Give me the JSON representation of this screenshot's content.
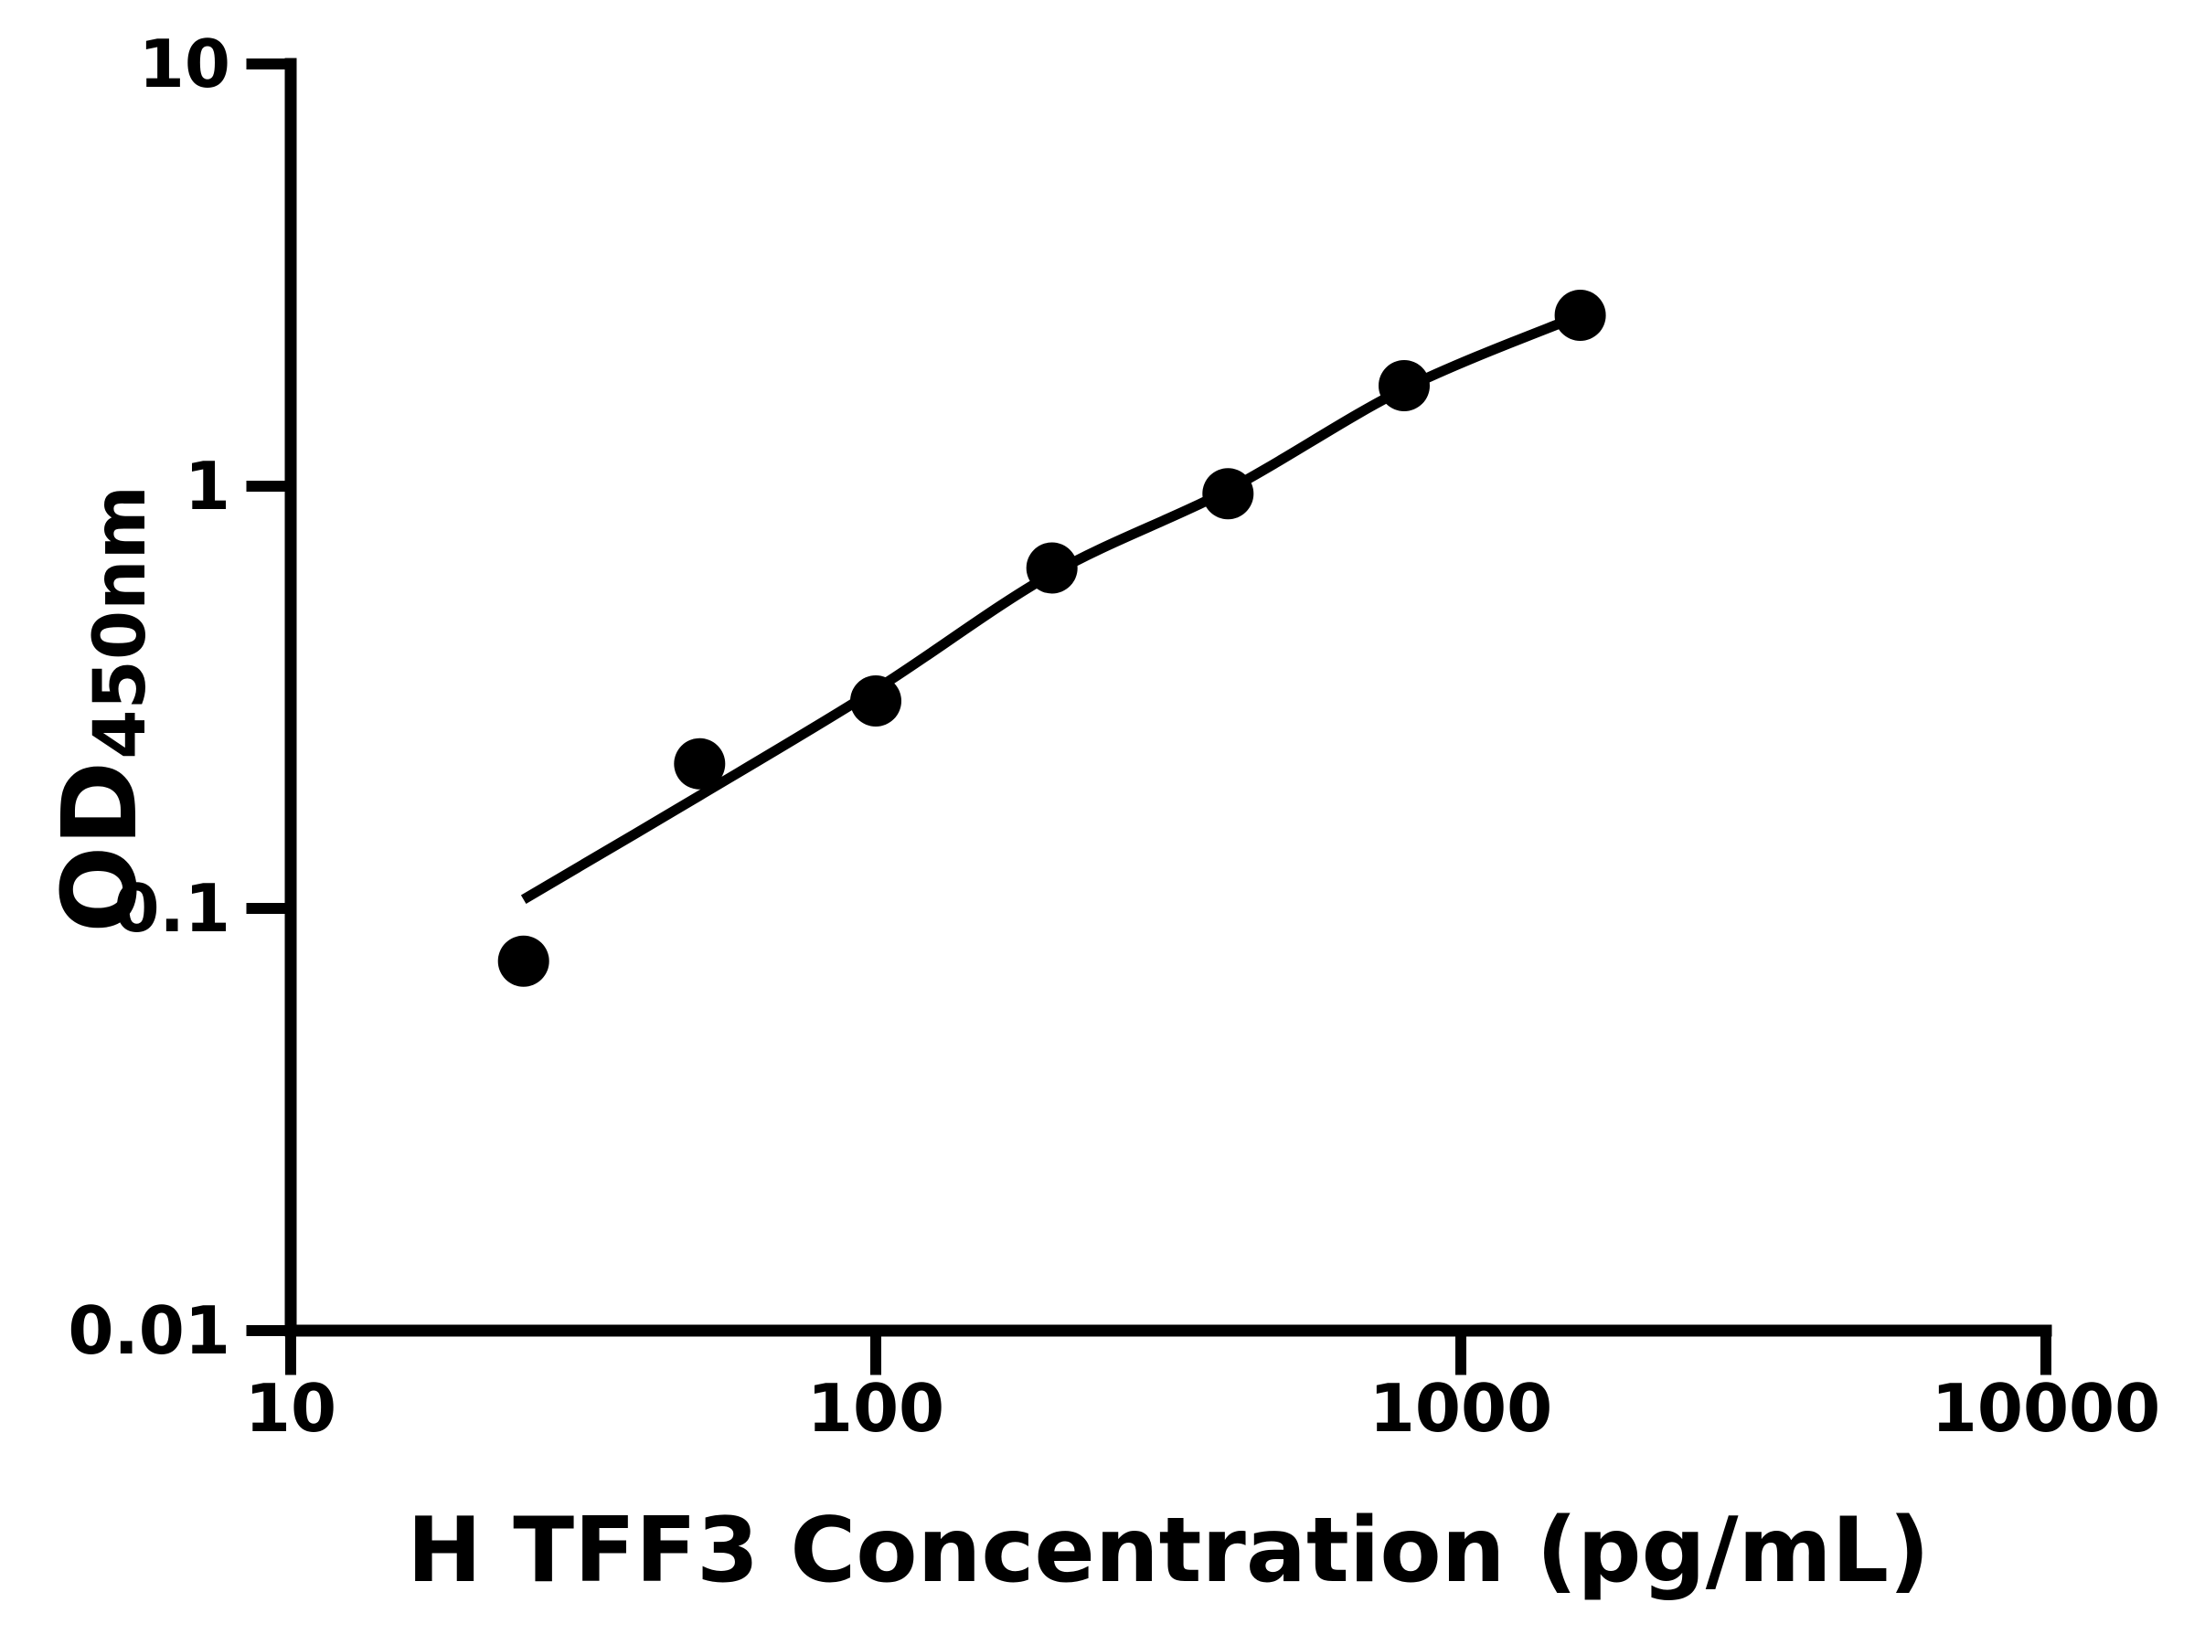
{
  "chart_data": {
    "type": "scatter",
    "title": "",
    "xlabel": "H TFF3 Concentration (pg/mL)",
    "ylabel_main": "OD",
    "ylabel_subscript": "450nm",
    "x_scale": "log",
    "y_scale": "log",
    "xlim": [
      10,
      10000
    ],
    "ylim": [
      0.01,
      10
    ],
    "x_ticks": {
      "values": [
        10,
        100,
        1000,
        10000
      ],
      "labels": [
        "10",
        "100",
        "1000",
        "10000"
      ]
    },
    "y_ticks": {
      "values": [
        10,
        1,
        0.1,
        0.01
      ],
      "labels": [
        "10",
        "1",
        "0.1",
        "0.01"
      ]
    },
    "grid": false,
    "legend": false,
    "series": [
      {
        "name": "standard-points",
        "marker": "filled-circle",
        "color": "#000000",
        "x": [
          25,
          50,
          100,
          200,
          400,
          800,
          1600
        ],
        "y": [
          0.075,
          0.22,
          0.31,
          0.64,
          0.96,
          1.73,
          2.54
        ]
      },
      {
        "name": "fit-curve",
        "marker": "none",
        "line": true,
        "color": "#000000",
        "x": [
          25,
          50,
          100,
          200,
          400,
          800,
          1600
        ],
        "y": [
          0.105,
          0.185,
          0.33,
          0.62,
          0.98,
          1.7,
          2.54
        ]
      }
    ],
    "colors": {
      "foreground": "#000000",
      "background": "#ffffff"
    }
  }
}
